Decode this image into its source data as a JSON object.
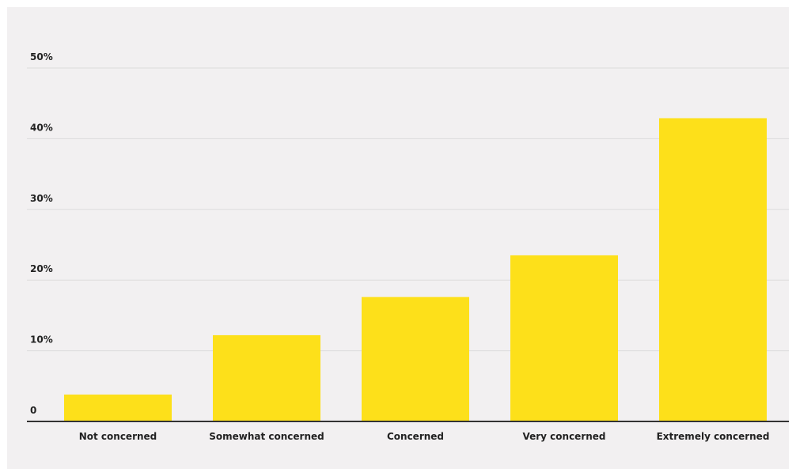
{
  "chart_data": {
    "type": "bar",
    "title": "",
    "xlabel": "",
    "ylabel": "",
    "categories": [
      "Not concerned",
      "Somewhat concerned",
      "Concerned",
      "Very concerned",
      "Extremely concerned"
    ],
    "values": [
      3.8,
      12.2,
      17.6,
      23.5,
      42.9
    ],
    "ylim": [
      0,
      50
    ],
    "yticks": [
      0,
      10,
      20,
      30,
      40,
      50
    ],
    "ytick_labels": [
      "0",
      "10%",
      "20%",
      "30%",
      "40%",
      "50%"
    ],
    "grid": true,
    "colors": {
      "bar": "#fde01a",
      "grid": "#dcdcdc",
      "axis": "#333333",
      "background": "#f2f0f1"
    }
  }
}
